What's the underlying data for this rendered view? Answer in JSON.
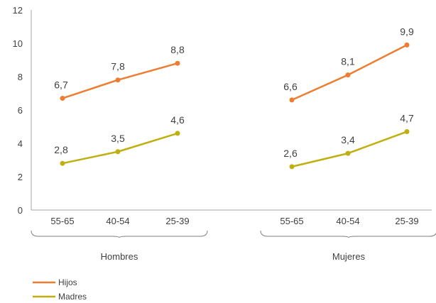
{
  "chart_data": {
    "type": "line",
    "groups": [
      {
        "name": "Hombres",
        "categories": [
          "55-65",
          "40-54",
          "25-39"
        ]
      },
      {
        "name": "Mujeres",
        "categories": [
          "55-65",
          "40-54",
          "25-39"
        ]
      }
    ],
    "series": [
      {
        "name": "Hijos",
        "color": "#ED7D31",
        "values": [
          [
            6.7,
            7.8,
            8.8
          ],
          [
            6.6,
            8.1,
            9.9
          ]
        ],
        "labels": [
          [
            "6,7",
            "7,8",
            "8,8"
          ],
          [
            "6,6",
            "8,1",
            "9,9"
          ]
        ]
      },
      {
        "name": "Madres",
        "color": "#BFAF10",
        "values": [
          [
            2.8,
            3.5,
            4.6
          ],
          [
            2.6,
            3.4,
            4.7
          ]
        ],
        "labels": [
          [
            "2,8",
            "3,5",
            "4,6"
          ],
          [
            "2,6",
            "3,4",
            "4,7"
          ]
        ]
      }
    ],
    "ylim": [
      0,
      12
    ],
    "yticks": [
      "0",
      "2",
      "4",
      "6",
      "8",
      "10",
      "12"
    ],
    "xlabel": "",
    "ylabel": "",
    "title": "",
    "grid": false,
    "legend_position": "bottom-left"
  }
}
